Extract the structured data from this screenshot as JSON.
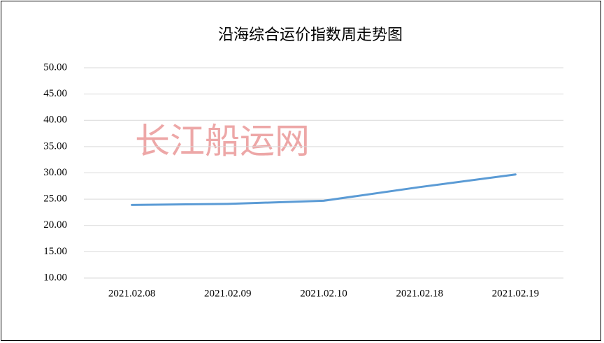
{
  "chart_data": {
    "type": "line",
    "title": "沿海综合运价指数周走势图",
    "watermark": "长江船运网",
    "categories": [
      "2021.02.08",
      "2021.02.09",
      "2021.02.10",
      "2021.02.18",
      "2021.02.19"
    ],
    "series": [
      {
        "name": "沿海综合运价指数",
        "color": "#5b9bd5",
        "values": [
          23.9,
          24.1,
          24.7,
          27.3,
          29.7
        ]
      }
    ],
    "ylim": [
      10,
      50
    ],
    "yticks": [
      {
        "value": 10,
        "label": "10.00"
      },
      {
        "value": 15,
        "label": "15.00"
      },
      {
        "value": 20,
        "label": "20.00"
      },
      {
        "value": 25,
        "label": "25.00"
      },
      {
        "value": 30,
        "label": "30.00"
      },
      {
        "value": 35,
        "label": "35.00"
      },
      {
        "value": 40,
        "label": "40.00"
      },
      {
        "value": 45,
        "label": "45.00"
      },
      {
        "value": 50,
        "label": "50.00"
      }
    ],
    "grid": true
  }
}
